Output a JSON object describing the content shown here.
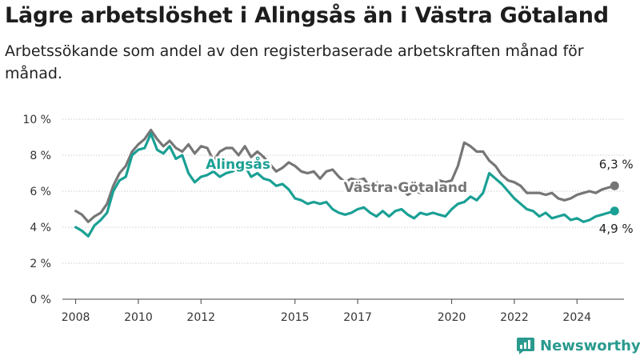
{
  "title": "Lägre arbetslöshet i Alingsås än i Västra Götaland",
  "subtitle": "Arbetssökande som andel av den registerbaserade arbetskraften månad för månad.",
  "brand": {
    "name": "Newsworthy",
    "color": "#2a9a8e"
  },
  "chart_data": {
    "type": "line",
    "title": "Lägre arbetslöshet i Alingsås än i Västra Götaland",
    "xlabel": "",
    "ylabel": "",
    "xlim": [
      2007.5,
      2025.5
    ],
    "ylim": [
      0,
      10
    ],
    "grid": "horizontal",
    "legend": "inline labels",
    "x_ticks": [
      2008,
      2010,
      2012,
      2015,
      2017,
      2020,
      2022,
      2024
    ],
    "x_tick_labels": [
      "2008",
      "2010",
      "2012",
      "2015",
      "2017",
      "2020",
      "2022",
      "2024"
    ],
    "y_ticks": [
      0,
      2,
      4,
      6,
      8,
      10
    ],
    "y_tick_labels": [
      "0 %",
      "2 %",
      "4 %",
      "6 %",
      "8 %",
      "10 %"
    ],
    "series": [
      {
        "name": "Västra Götaland",
        "color": "#767676",
        "end_label": "6,3 %",
        "points": [
          [
            2008.0,
            4.9
          ],
          [
            2008.2,
            4.7
          ],
          [
            2008.4,
            4.3
          ],
          [
            2008.6,
            4.6
          ],
          [
            2008.8,
            4.8
          ],
          [
            2009.0,
            5.3
          ],
          [
            2009.2,
            6.3
          ],
          [
            2009.4,
            7.0
          ],
          [
            2009.6,
            7.4
          ],
          [
            2009.8,
            8.2
          ],
          [
            2010.0,
            8.6
          ],
          [
            2010.2,
            8.9
          ],
          [
            2010.4,
            9.4
          ],
          [
            2010.6,
            8.9
          ],
          [
            2010.8,
            8.5
          ],
          [
            2011.0,
            8.8
          ],
          [
            2011.2,
            8.4
          ],
          [
            2011.4,
            8.2
          ],
          [
            2011.6,
            8.6
          ],
          [
            2011.8,
            8.1
          ],
          [
            2012.0,
            8.5
          ],
          [
            2012.2,
            8.4
          ],
          [
            2012.4,
            7.7
          ],
          [
            2012.6,
            8.2
          ],
          [
            2012.8,
            8.4
          ],
          [
            2013.0,
            8.4
          ],
          [
            2013.2,
            8.0
          ],
          [
            2013.4,
            8.5
          ],
          [
            2013.6,
            7.9
          ],
          [
            2013.8,
            8.2
          ],
          [
            2014.0,
            7.9
          ],
          [
            2014.2,
            7.5
          ],
          [
            2014.4,
            7.1
          ],
          [
            2014.6,
            7.3
          ],
          [
            2014.8,
            7.6
          ],
          [
            2015.0,
            7.4
          ],
          [
            2015.2,
            7.1
          ],
          [
            2015.4,
            7.0
          ],
          [
            2015.6,
            7.1
          ],
          [
            2015.8,
            6.7
          ],
          [
            2016.0,
            7.1
          ],
          [
            2016.2,
            7.2
          ],
          [
            2016.4,
            6.8
          ],
          [
            2016.6,
            6.5
          ],
          [
            2016.8,
            6.7
          ],
          [
            2017.0,
            6.6
          ],
          [
            2017.2,
            6.7
          ],
          [
            2017.4,
            6.2
          ],
          [
            2017.6,
            6.5
          ],
          [
            2017.8,
            6.1
          ],
          [
            2018.0,
            6.3
          ],
          [
            2018.2,
            6.2
          ],
          [
            2018.4,
            6.1
          ],
          [
            2018.6,
            5.8
          ],
          [
            2018.8,
            6.0
          ],
          [
            2019.0,
            5.9
          ],
          [
            2019.2,
            6.3
          ],
          [
            2019.4,
            6.2
          ],
          [
            2019.6,
            6.6
          ],
          [
            2019.8,
            6.5
          ],
          [
            2020.0,
            6.6
          ],
          [
            2020.2,
            7.4
          ],
          [
            2020.4,
            8.7
          ],
          [
            2020.6,
            8.5
          ],
          [
            2020.8,
            8.2
          ],
          [
            2021.0,
            8.2
          ],
          [
            2021.2,
            7.7
          ],
          [
            2021.4,
            7.4
          ],
          [
            2021.6,
            6.9
          ],
          [
            2021.8,
            6.6
          ],
          [
            2022.0,
            6.5
          ],
          [
            2022.2,
            6.3
          ],
          [
            2022.4,
            5.9
          ],
          [
            2022.6,
            5.9
          ],
          [
            2022.8,
            5.9
          ],
          [
            2023.0,
            5.8
          ],
          [
            2023.2,
            5.9
          ],
          [
            2023.4,
            5.6
          ],
          [
            2023.6,
            5.5
          ],
          [
            2023.8,
            5.6
          ],
          [
            2024.0,
            5.8
          ],
          [
            2024.2,
            5.9
          ],
          [
            2024.4,
            6.0
          ],
          [
            2024.6,
            5.9
          ],
          [
            2024.8,
            6.1
          ],
          [
            2025.0,
            6.2
          ],
          [
            2025.2,
            6.3
          ]
        ]
      },
      {
        "name": "Alingsås",
        "color": "#1aa094",
        "end_label": "4,9 %",
        "points": [
          [
            2008.0,
            4.0
          ],
          [
            2008.2,
            3.8
          ],
          [
            2008.4,
            3.5
          ],
          [
            2008.6,
            4.1
          ],
          [
            2008.8,
            4.4
          ],
          [
            2009.0,
            4.8
          ],
          [
            2009.2,
            6.0
          ],
          [
            2009.4,
            6.6
          ],
          [
            2009.6,
            6.8
          ],
          [
            2009.8,
            8.0
          ],
          [
            2010.0,
            8.3
          ],
          [
            2010.2,
            8.4
          ],
          [
            2010.4,
            9.2
          ],
          [
            2010.6,
            8.3
          ],
          [
            2010.8,
            8.1
          ],
          [
            2011.0,
            8.5
          ],
          [
            2011.2,
            7.8
          ],
          [
            2011.4,
            8.0
          ],
          [
            2011.6,
            7.0
          ],
          [
            2011.8,
            6.5
          ],
          [
            2012.0,
            6.8
          ],
          [
            2012.2,
            6.9
          ],
          [
            2012.4,
            7.1
          ],
          [
            2012.6,
            6.8
          ],
          [
            2012.8,
            7.0
          ],
          [
            2013.0,
            7.1
          ],
          [
            2013.2,
            7.3
          ],
          [
            2013.4,
            7.4
          ],
          [
            2013.6,
            6.8
          ],
          [
            2013.8,
            7.0
          ],
          [
            2014.0,
            6.7
          ],
          [
            2014.2,
            6.6
          ],
          [
            2014.4,
            6.3
          ],
          [
            2014.6,
            6.4
          ],
          [
            2014.8,
            6.1
          ],
          [
            2015.0,
            5.6
          ],
          [
            2015.2,
            5.5
          ],
          [
            2015.4,
            5.3
          ],
          [
            2015.6,
            5.4
          ],
          [
            2015.8,
            5.3
          ],
          [
            2016.0,
            5.4
          ],
          [
            2016.2,
            5.0
          ],
          [
            2016.4,
            4.8
          ],
          [
            2016.6,
            4.7
          ],
          [
            2016.8,
            4.8
          ],
          [
            2017.0,
            5.0
          ],
          [
            2017.2,
            5.1
          ],
          [
            2017.4,
            4.8
          ],
          [
            2017.6,
            4.6
          ],
          [
            2017.8,
            4.9
          ],
          [
            2018.0,
            4.6
          ],
          [
            2018.2,
            4.9
          ],
          [
            2018.4,
            5.0
          ],
          [
            2018.6,
            4.7
          ],
          [
            2018.8,
            4.5
          ],
          [
            2019.0,
            4.8
          ],
          [
            2019.2,
            4.7
          ],
          [
            2019.4,
            4.8
          ],
          [
            2019.6,
            4.7
          ],
          [
            2019.8,
            4.6
          ],
          [
            2020.0,
            5.0
          ],
          [
            2020.2,
            5.3
          ],
          [
            2020.4,
            5.4
          ],
          [
            2020.6,
            5.7
          ],
          [
            2020.8,
            5.5
          ],
          [
            2021.0,
            5.9
          ],
          [
            2021.2,
            7.0
          ],
          [
            2021.4,
            6.7
          ],
          [
            2021.6,
            6.4
          ],
          [
            2021.8,
            6.0
          ],
          [
            2022.0,
            5.6
          ],
          [
            2022.2,
            5.3
          ],
          [
            2022.4,
            5.0
          ],
          [
            2022.6,
            4.9
          ],
          [
            2022.8,
            4.6
          ],
          [
            2023.0,
            4.8
          ],
          [
            2023.2,
            4.5
          ],
          [
            2023.4,
            4.6
          ],
          [
            2023.6,
            4.7
          ],
          [
            2023.8,
            4.4
          ],
          [
            2024.0,
            4.5
          ],
          [
            2024.2,
            4.3
          ],
          [
            2024.4,
            4.4
          ],
          [
            2024.6,
            4.6
          ],
          [
            2024.8,
            4.7
          ],
          [
            2025.0,
            4.8
          ],
          [
            2025.2,
            4.9
          ]
        ]
      }
    ]
  }
}
